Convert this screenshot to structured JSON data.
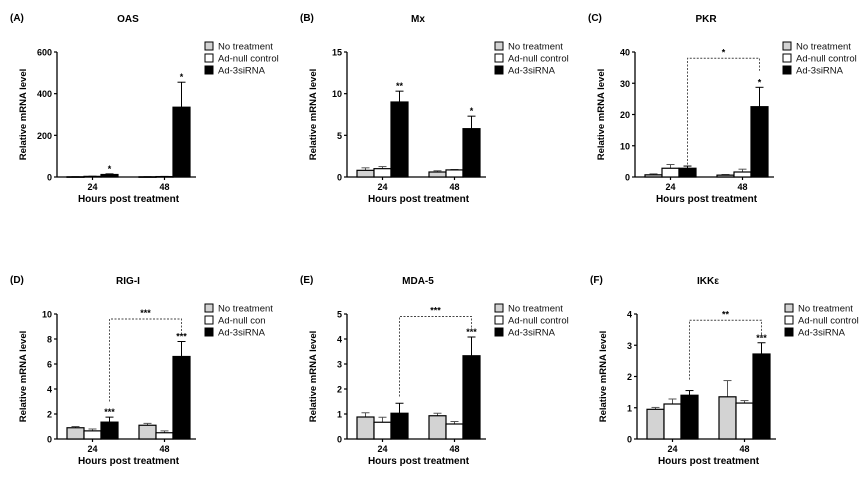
{
  "chart_data": [
    {
      "type": "bar",
      "panel_label": "(A)",
      "title": "OAS",
      "xlabel": "Hours post treatment",
      "ylabel": "Relative mRNA level",
      "categories": [
        "24",
        "48"
      ],
      "ylim": [
        0,
        600
      ],
      "yticks": [
        0,
        200,
        400,
        600
      ],
      "series": [
        {
          "name": "No treatment",
          "color": "#d3d3d3",
          "values": [
            1,
            1
          ],
          "errors": [
            1,
            1
          ],
          "stars": [
            "",
            ""
          ]
        },
        {
          "name": "Ad-null control",
          "color": "#ffffff",
          "values": [
            3,
            2
          ],
          "errors": [
            1,
            1
          ],
          "stars": [
            "",
            ""
          ]
        },
        {
          "name": "Ad-3siRNA",
          "color": "#000000",
          "values": [
            12,
            335
          ],
          "errors": [
            3,
            120
          ],
          "stars": [
            "*",
            "*"
          ]
        }
      ],
      "bracket": null
    },
    {
      "type": "bar",
      "panel_label": "(B)",
      "title": "Mx",
      "xlabel": "Hours post treatment",
      "ylabel": "Relative mRNA level",
      "categories": [
        "24",
        "48"
      ],
      "ylim": [
        0,
        15
      ],
      "yticks": [
        0,
        5,
        10,
        15
      ],
      "series": [
        {
          "name": "No treatment",
          "color": "#d3d3d3",
          "values": [
            0.8,
            0.6
          ],
          "errors": [
            0.3,
            0.15
          ],
          "stars": [
            "",
            ""
          ]
        },
        {
          "name": "Ad-null control",
          "color": "#ffffff",
          "values": [
            1.0,
            0.85
          ],
          "errors": [
            0.25,
            0.05
          ],
          "stars": [
            "",
            ""
          ]
        },
        {
          "name": "Ad-3siRNA",
          "color": "#000000",
          "values": [
            9.0,
            5.8
          ],
          "errors": [
            1.3,
            1.5
          ],
          "stars": [
            "**",
            "*"
          ]
        }
      ],
      "bracket": null
    },
    {
      "type": "bar",
      "panel_label": "(C)",
      "title": "PKR",
      "xlabel": "Hours post treatment",
      "ylabel": "Relative mRNA level",
      "categories": [
        "24",
        "48"
      ],
      "ylim": [
        0,
        40
      ],
      "yticks": [
        0,
        10,
        20,
        30,
        40
      ],
      "series": [
        {
          "name": "No treatment",
          "color": "#d3d3d3",
          "values": [
            0.7,
            0.6
          ],
          "errors": [
            0.3,
            0.2
          ],
          "stars": [
            "",
            ""
          ]
        },
        {
          "name": "Ad-null control",
          "color": "#ffffff",
          "values": [
            2.8,
            1.6
          ],
          "errors": [
            1.2,
            0.9
          ],
          "stars": [
            "",
            ""
          ]
        },
        {
          "name": "Ad-3siRNA",
          "color": "#000000",
          "values": [
            2.8,
            22.5
          ],
          "errors": [
            0.7,
            6.2
          ],
          "stars": [
            "",
            "*"
          ]
        }
      ],
      "bracket": {
        "label": "*",
        "level": 38,
        "left_end": 4,
        "right_end": 34
      }
    },
    {
      "type": "bar",
      "panel_label": "(D)",
      "title": "RIG-I",
      "xlabel": "Hours post treatment",
      "ylabel": "Relative mRNA level",
      "categories": [
        "24",
        "48"
      ],
      "ylim": [
        0,
        10
      ],
      "yticks": [
        0,
        2,
        4,
        6,
        8,
        10
      ],
      "series": [
        {
          "name": "No treatment",
          "color": "#d3d3d3",
          "values": [
            0.9,
            1.1
          ],
          "errors": [
            0.1,
            0.15
          ],
          "stars": [
            "",
            ""
          ]
        },
        {
          "name": "Ad-null con",
          "color": "#ffffff",
          "values": [
            0.65,
            0.5
          ],
          "errors": [
            0.15,
            0.15
          ],
          "stars": [
            "",
            ""
          ]
        },
        {
          "name": "Ad-3siRNA",
          "color": "#000000",
          "values": [
            1.35,
            6.6
          ],
          "errors": [
            0.4,
            1.2
          ],
          "stars": [
            "***",
            "***"
          ]
        }
      ],
      "bracket": {
        "label": "***",
        "level": 9.6,
        "left_end": 3,
        "right_end": 8.4
      }
    },
    {
      "type": "bar",
      "panel_label": "(E)",
      "title": "MDA-5",
      "xlabel": "Hours post treatment",
      "ylabel": "Relative mRNA level",
      "categories": [
        "24",
        "48"
      ],
      "ylim": [
        0,
        5
      ],
      "yticks": [
        0,
        1,
        2,
        3,
        4,
        5
      ],
      "series": [
        {
          "name": "No treatment",
          "color": "#d3d3d3",
          "values": [
            0.88,
            0.93
          ],
          "errors": [
            0.17,
            0.1
          ],
          "stars": [
            "",
            ""
          ]
        },
        {
          "name": "Ad-null control",
          "color": "#ffffff",
          "values": [
            0.67,
            0.6
          ],
          "errors": [
            0.2,
            0.1
          ],
          "stars": [
            "",
            ""
          ]
        },
        {
          "name": "Ad-3siRNA",
          "color": "#000000",
          "values": [
            1.03,
            3.33
          ],
          "errors": [
            0.4,
            0.75
          ],
          "stars": [
            "",
            "***"
          ]
        }
      ],
      "bracket": {
        "label": "***",
        "level": 4.9,
        "left_end": 1.7,
        "right_end": 4.35
      }
    },
    {
      "type": "bar",
      "panel_label": "(F)",
      "title": "IKKε",
      "xlabel": "Hours post treatment",
      "ylabel": "Relative mRNA level",
      "categories": [
        "24",
        "48"
      ],
      "ylim": [
        0,
        4
      ],
      "yticks": [
        0,
        1,
        2,
        3,
        4
      ],
      "series": [
        {
          "name": "No treatment",
          "color": "#d3d3d3",
          "values": [
            0.95,
            1.35
          ],
          "errors": [
            0.06,
            0.52
          ],
          "stars": [
            "",
            ""
          ]
        },
        {
          "name": "Ad-null control",
          "color": "#ffffff",
          "values": [
            1.12,
            1.15
          ],
          "errors": [
            0.16,
            0.08
          ],
          "stars": [
            "",
            ""
          ]
        },
        {
          "name": "Ad-3siRNA",
          "color": "#000000",
          "values": [
            1.4,
            2.72
          ],
          "errors": [
            0.15,
            0.36
          ],
          "stars": [
            "",
            "***"
          ]
        }
      ],
      "bracket": {
        "label": "**",
        "level": 3.8,
        "left_end": 1.9,
        "right_end": 3.2
      }
    }
  ]
}
